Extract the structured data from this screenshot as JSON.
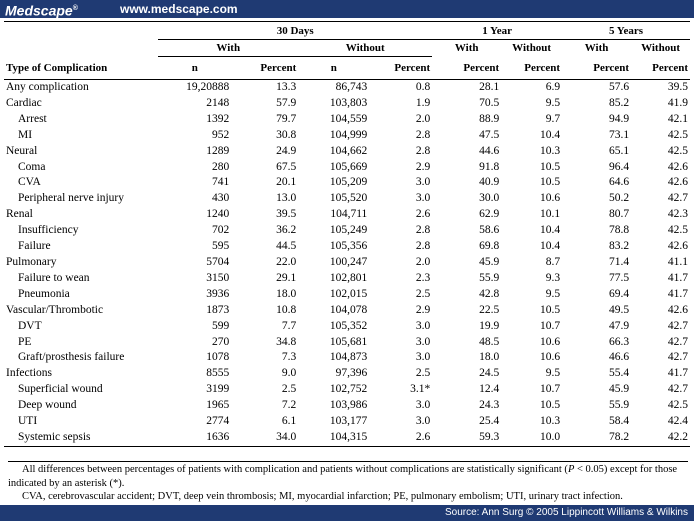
{
  "header": {
    "logo": "Medscape",
    "logo_mark": "®",
    "url": "www.medscape.com"
  },
  "table": {
    "group_headers": [
      "30 Days",
      "1 Year",
      "5 Years"
    ],
    "sub_headers_30d": [
      "With",
      "Without"
    ],
    "sub_headers_1y": [
      "With",
      "Without"
    ],
    "sub_headers_5y": [
      "With",
      "Without"
    ],
    "row_label_header": "Type of Complication",
    "col_headers": [
      "n",
      "Percent",
      "n",
      "Percent",
      "Percent",
      "Percent",
      "Percent",
      "Percent"
    ],
    "rows": [
      {
        "label": "Any complication",
        "indent": false,
        "v": [
          "19,20888",
          "13.3",
          "86,743",
          "0.8",
          "28.1",
          "6.9",
          "57.6",
          "39.5"
        ]
      },
      {
        "label": "Cardiac",
        "indent": false,
        "v": [
          "2148",
          "57.9",
          "103,803",
          "1.9",
          "70.5",
          "9.5",
          "85.2",
          "41.9"
        ]
      },
      {
        "label": "Arrest",
        "indent": true,
        "v": [
          "1392",
          "79.7",
          "104,559",
          "2.0",
          "88.9",
          "9.7",
          "94.9",
          "42.1"
        ]
      },
      {
        "label": "MI",
        "indent": true,
        "v": [
          "952",
          "30.8",
          "104,999",
          "2.8",
          "47.5",
          "10.4",
          "73.1",
          "42.5"
        ]
      },
      {
        "label": "Neural",
        "indent": false,
        "v": [
          "1289",
          "24.9",
          "104,662",
          "2.8",
          "44.6",
          "10.3",
          "65.1",
          "42.5"
        ]
      },
      {
        "label": "Coma",
        "indent": true,
        "v": [
          "280",
          "67.5",
          "105,669",
          "2.9",
          "91.8",
          "10.5",
          "96.4",
          "42.6"
        ]
      },
      {
        "label": "CVA",
        "indent": true,
        "v": [
          "741",
          "20.1",
          "105,209",
          "3.0",
          "40.9",
          "10.5",
          "64.6",
          "42.6"
        ]
      },
      {
        "label": "Peripheral nerve injury",
        "indent": true,
        "v": [
          "430",
          "13.0",
          "105,520",
          "3.0",
          "30.0",
          "10.6",
          "50.2",
          "42.7"
        ]
      },
      {
        "label": "Renal",
        "indent": false,
        "v": [
          "1240",
          "39.5",
          "104,711",
          "2.6",
          "62.9",
          "10.1",
          "80.7",
          "42.3"
        ]
      },
      {
        "label": "Insufficiency",
        "indent": true,
        "v": [
          "702",
          "36.2",
          "105,249",
          "2.8",
          "58.6",
          "10.4",
          "78.8",
          "42.5"
        ]
      },
      {
        "label": "Failure",
        "indent": true,
        "v": [
          "595",
          "44.5",
          "105,356",
          "2.8",
          "69.8",
          "10.4",
          "83.2",
          "42.6"
        ]
      },
      {
        "label": "Pulmonary",
        "indent": false,
        "v": [
          "5704",
          "22.0",
          "100,247",
          "2.0",
          "45.9",
          "8.7",
          "71.4",
          "41.1"
        ]
      },
      {
        "label": "Failure to wean",
        "indent": true,
        "v": [
          "3150",
          "29.1",
          "102,801",
          "2.3",
          "55.9",
          "9.3",
          "77.5",
          "41.7"
        ]
      },
      {
        "label": "Pneumonia",
        "indent": true,
        "v": [
          "3936",
          "18.0",
          "102,015",
          "2.5",
          "42.8",
          "9.5",
          "69.4",
          "41.7"
        ]
      },
      {
        "label": "Vascular/Thrombotic",
        "indent": false,
        "v": [
          "1873",
          "10.8",
          "104,078",
          "2.9",
          "22.5",
          "10.5",
          "49.5",
          "42.6"
        ]
      },
      {
        "label": "DVT",
        "indent": true,
        "v": [
          "599",
          "7.7",
          "105,352",
          "3.0",
          "19.9",
          "10.7",
          "47.9",
          "42.7"
        ]
      },
      {
        "label": "PE",
        "indent": true,
        "v": [
          "270",
          "34.8",
          "105,681",
          "3.0",
          "48.5",
          "10.6",
          "66.3",
          "42.7"
        ]
      },
      {
        "label": "Graft/prosthesis failure",
        "indent": true,
        "v": [
          "1078",
          "7.3",
          "104,873",
          "3.0",
          "18.0",
          "10.6",
          "46.6",
          "42.7"
        ]
      },
      {
        "label": "Infections",
        "indent": false,
        "v": [
          "8555",
          "9.0",
          "97,396",
          "2.5",
          "24.5",
          "9.5",
          "55.4",
          "41.7"
        ]
      },
      {
        "label": "Superficial wound",
        "indent": true,
        "v": [
          "3199",
          "2.5",
          "102,752",
          "3.1*",
          "12.4",
          "10.7",
          "45.9",
          "42.7"
        ]
      },
      {
        "label": "Deep wound",
        "indent": true,
        "v": [
          "1965",
          "7.2",
          "103,986",
          "3.0",
          "24.3",
          "10.5",
          "55.9",
          "42.5"
        ]
      },
      {
        "label": "UTI",
        "indent": true,
        "v": [
          "2774",
          "6.1",
          "103,177",
          "3.0",
          "25.4",
          "10.3",
          "58.4",
          "42.4"
        ]
      },
      {
        "label": "Systemic sepsis",
        "indent": true,
        "v": [
          "1636",
          "34.0",
          "104,315",
          "2.6",
          "59.3",
          "10.0",
          "78.2",
          "42.2"
        ]
      }
    ]
  },
  "notes": {
    "note1_a": "All differences between percentages of patients with complication and patients without complications are statistically significant (",
    "note1_p": "P",
    "note1_b": " < 0.05) except for those indicated by an asterisk (*).",
    "note2": "CVA, cerebrovascular accident; DVT, deep vein thrombosis; MI, myocardial infarction; PE, pulmonary embolism; UTI, urinary tract infection."
  },
  "footer": {
    "source": "Source: Ann Surg © 2005 Lippincott Williams & Wilkins"
  },
  "colors": {
    "bar": "#1f3a73",
    "text": "#000000",
    "background": "#ffffff"
  }
}
